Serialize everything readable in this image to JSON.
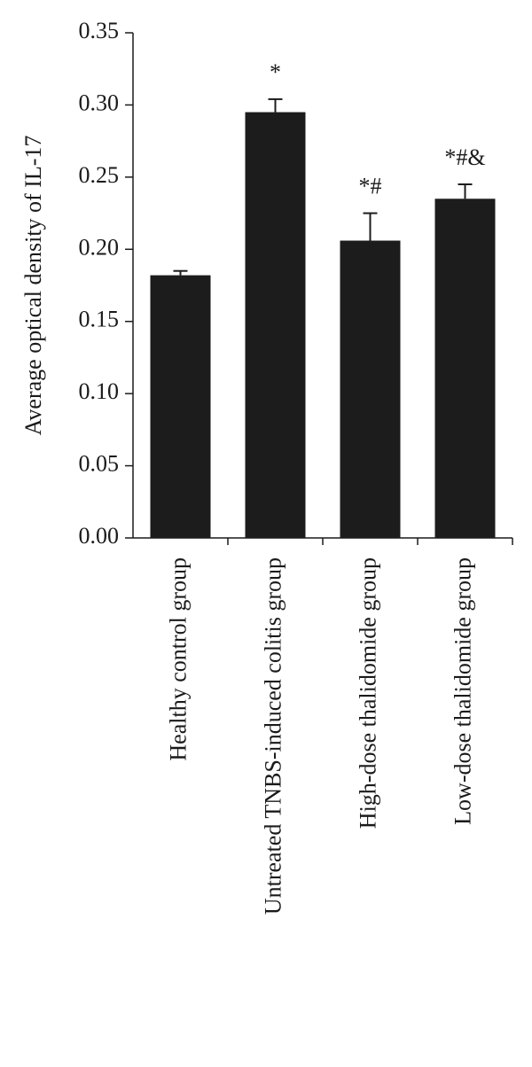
{
  "chart_data": {
    "type": "bar",
    "y_label": "Average optical density of IL-17",
    "categories": [
      "Healthy control group",
      "Untreated TNBS-induced colitis group",
      "High-dose thalidomide group",
      "Low-dose thalidomide group"
    ],
    "values": [
      0.182,
      0.295,
      0.206,
      0.235
    ],
    "errors": [
      0.003,
      0.009,
      0.019,
      0.01
    ],
    "annotations": [
      null,
      "*",
      "*#",
      "*#&"
    ],
    "color": "#1c1c1c",
    "ylim": [
      0,
      0.35
    ],
    "yticks": [
      {
        "value": 0,
        "label": "0.00"
      },
      {
        "value": 0.05,
        "label": "0.05"
      },
      {
        "value": 0.1,
        "label": "0.10"
      },
      {
        "value": 0.15,
        "label": "0.15"
      },
      {
        "value": 0.2,
        "label": "0.20"
      },
      {
        "value": 0.25,
        "label": "0.25"
      },
      {
        "value": 0.3,
        "label": "0.30"
      },
      {
        "value": 0.35,
        "label": "0.35"
      }
    ]
  }
}
